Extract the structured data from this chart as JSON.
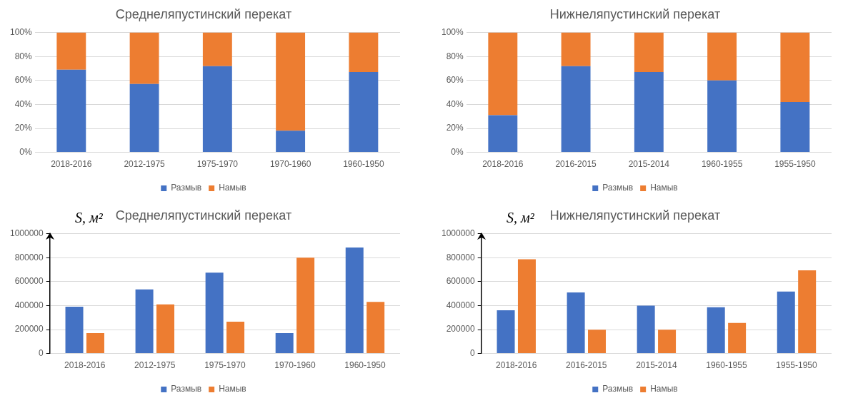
{
  "chart_data": [
    {
      "type": "bar",
      "title": "Среднеляпустинский перекат",
      "stacked": true,
      "categories": [
        "2018-2016",
        "2012-1975",
        "1975-1970",
        "1970-1960",
        "1960-1950"
      ],
      "series": [
        {
          "name": "Размыв",
          "color": "#4472c4",
          "values": [
            69,
            57,
            72,
            18,
            67
          ]
        },
        {
          "name": "Намыв",
          "color": "#ed7d31",
          "values": [
            31,
            43,
            28,
            82,
            33
          ]
        }
      ],
      "ylim": [
        0,
        100
      ],
      "yticks": [
        {
          "value": 0,
          "label": "0%"
        },
        {
          "value": 20,
          "label": "20%"
        },
        {
          "value": 40,
          "label": "40%"
        },
        {
          "value": 60,
          "label": "60%"
        },
        {
          "value": 80,
          "label": "80%"
        },
        {
          "value": 100,
          "label": "100%"
        }
      ],
      "grid": "y",
      "legend": "bottom"
    },
    {
      "type": "bar",
      "title": "Нижнеляпустинский перекат",
      "stacked": true,
      "categories": [
        "2018-2016",
        "2016-2015",
        "2015-2014",
        "1960-1955",
        "1955-1950"
      ],
      "series": [
        {
          "name": "Размыв",
          "color": "#4472c4",
          "values": [
            31,
            72,
            67,
            60,
            42
          ]
        },
        {
          "name": "Намыв",
          "color": "#ed7d31",
          "values": [
            69,
            28,
            33,
            40,
            58
          ]
        }
      ],
      "ylim": [
        0,
        100
      ],
      "yticks": [
        {
          "value": 0,
          "label": "0%"
        },
        {
          "value": 20,
          "label": "20%"
        },
        {
          "value": 40,
          "label": "40%"
        },
        {
          "value": 60,
          "label": "60%"
        },
        {
          "value": 80,
          "label": "80%"
        },
        {
          "value": 100,
          "label": "100%"
        }
      ],
      "grid": "y",
      "legend": "bottom"
    },
    {
      "type": "bar",
      "title": "Среднеляпустинский перекат",
      "ylabel": "S, м²",
      "categories": [
        "2018-2016",
        "2012-1975",
        "1975-1970",
        "1970-1960",
        "1960-1950"
      ],
      "series": [
        {
          "name": "Размыв",
          "color": "#4472c4",
          "values": [
            390000,
            535000,
            675000,
            170000,
            885000
          ]
        },
        {
          "name": "Намыв",
          "color": "#ed7d31",
          "values": [
            170000,
            410000,
            265000,
            800000,
            430000
          ]
        }
      ],
      "ylim": [
        0,
        1000000
      ],
      "yticks": [
        0,
        200000,
        400000,
        600000,
        800000,
        1000000
      ],
      "grid": "y",
      "legend": "bottom"
    },
    {
      "type": "bar",
      "title": "Нижнеляпустинский перекат",
      "ylabel": "S, м²",
      "categories": [
        "2018-2016",
        "2016-2015",
        "2015-2014",
        "1960-1955",
        "1955-1950"
      ],
      "series": [
        {
          "name": "Размыв",
          "color": "#4472c4",
          "values": [
            360000,
            510000,
            400000,
            386000,
            517000
          ]
        },
        {
          "name": "Намыв",
          "color": "#ed7d31",
          "values": [
            787000,
            198000,
            198000,
            255000,
            694000
          ]
        }
      ],
      "ylim": [
        0,
        1000000
      ],
      "yticks": [
        0,
        200000,
        400000,
        600000,
        800000,
        1000000
      ],
      "grid": "y",
      "legend": "bottom"
    }
  ]
}
